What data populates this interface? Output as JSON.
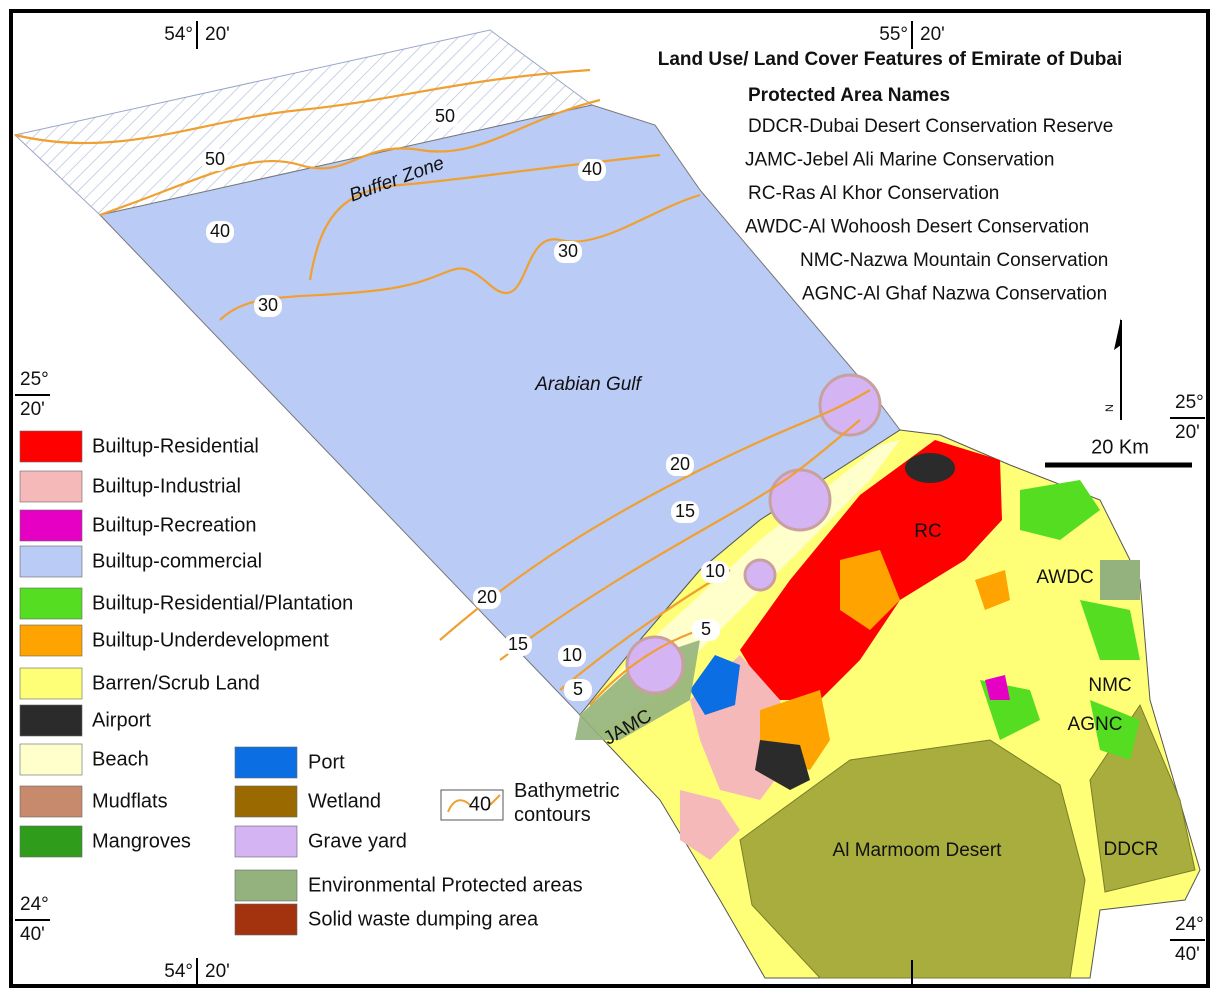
{
  "title": "Land Use/ Land Cover Features of Emirate of Dubai",
  "protected_areas": {
    "heading": "Protected Area Names",
    "items": [
      "DDCR-Dubai Desert Conservation Reserve",
      "JAMC-Jebel Ali Marine Conservation",
      "RC-Ras Al Khor Conservation",
      "AWDC-Al Wohoosh Desert Conservation",
      "NMC-Nazwa Mountain Conservation",
      "AGNC-Al Ghaf Nazwa Conservation"
    ]
  },
  "coordinates": [
    {
      "deg": "54°",
      "min": "20'"
    },
    {
      "deg": "55°",
      "min": "20'"
    },
    {
      "deg": "25°",
      "min": "20'"
    },
    {
      "deg": "25°",
      "min": "20'"
    },
    {
      "deg": "24°",
      "min": "40'"
    },
    {
      "deg": "24°",
      "min": "40'"
    },
    {
      "deg": "54°",
      "min": "20'"
    }
  ],
  "north": "N",
  "scale_bar": "20 Km",
  "map_labels": [
    "Buffer Zone",
    "Arabian Gulf",
    "RC",
    "AWDC",
    "NMC",
    "AGNC",
    "JAMC",
    "Al Marmoom Desert",
    "DDCR"
  ],
  "contour_labels": [
    "50",
    "50",
    "40",
    "40",
    "30",
    "30",
    "20",
    "15",
    "10",
    "5",
    "20",
    "15",
    "10",
    "5"
  ],
  "legend": {
    "items": [
      {
        "label": "Builtup-Residential",
        "color": "#ff0000"
      },
      {
        "label": "Builtup-Industrial",
        "color": "#f6b9b9"
      },
      {
        "label": "Builtup-Recreation",
        "color": "#e600c4"
      },
      {
        "label": "Builtup-commercial",
        "color": "#bacbf6"
      },
      {
        "label": "Builtup-Residential/Plantation",
        "color": "#55dd22"
      },
      {
        "label": "Builtup-Underdevelopment",
        "color": "#ffa300"
      },
      {
        "label": "Barren/Scrub Land",
        "color": "#ffff77"
      },
      {
        "label": "Airport",
        "color": "#2b2b2b"
      },
      {
        "label": "Beach",
        "color": "#ffffcc"
      },
      {
        "label": "Mudflats",
        "color": "#c88a6c"
      },
      {
        "label": "Mangroves",
        "color": "#2f9c1c"
      },
      {
        "label": "Port",
        "color": "#0b6fe3"
      },
      {
        "label": "Wetland",
        "color": "#9a6900"
      },
      {
        "label": "Grave yard",
        "color": "#d4b4f2"
      },
      {
        "label": "Environmental Protected areas",
        "color": "#93b27d"
      },
      {
        "label": "Solid waste dumping area",
        "color": "#a3320e"
      }
    ],
    "contour_sample": "40",
    "contour_label": "Bathymetric contours",
    "contour_color": "#f0a030"
  },
  "desert_color": "#a8ad3e"
}
